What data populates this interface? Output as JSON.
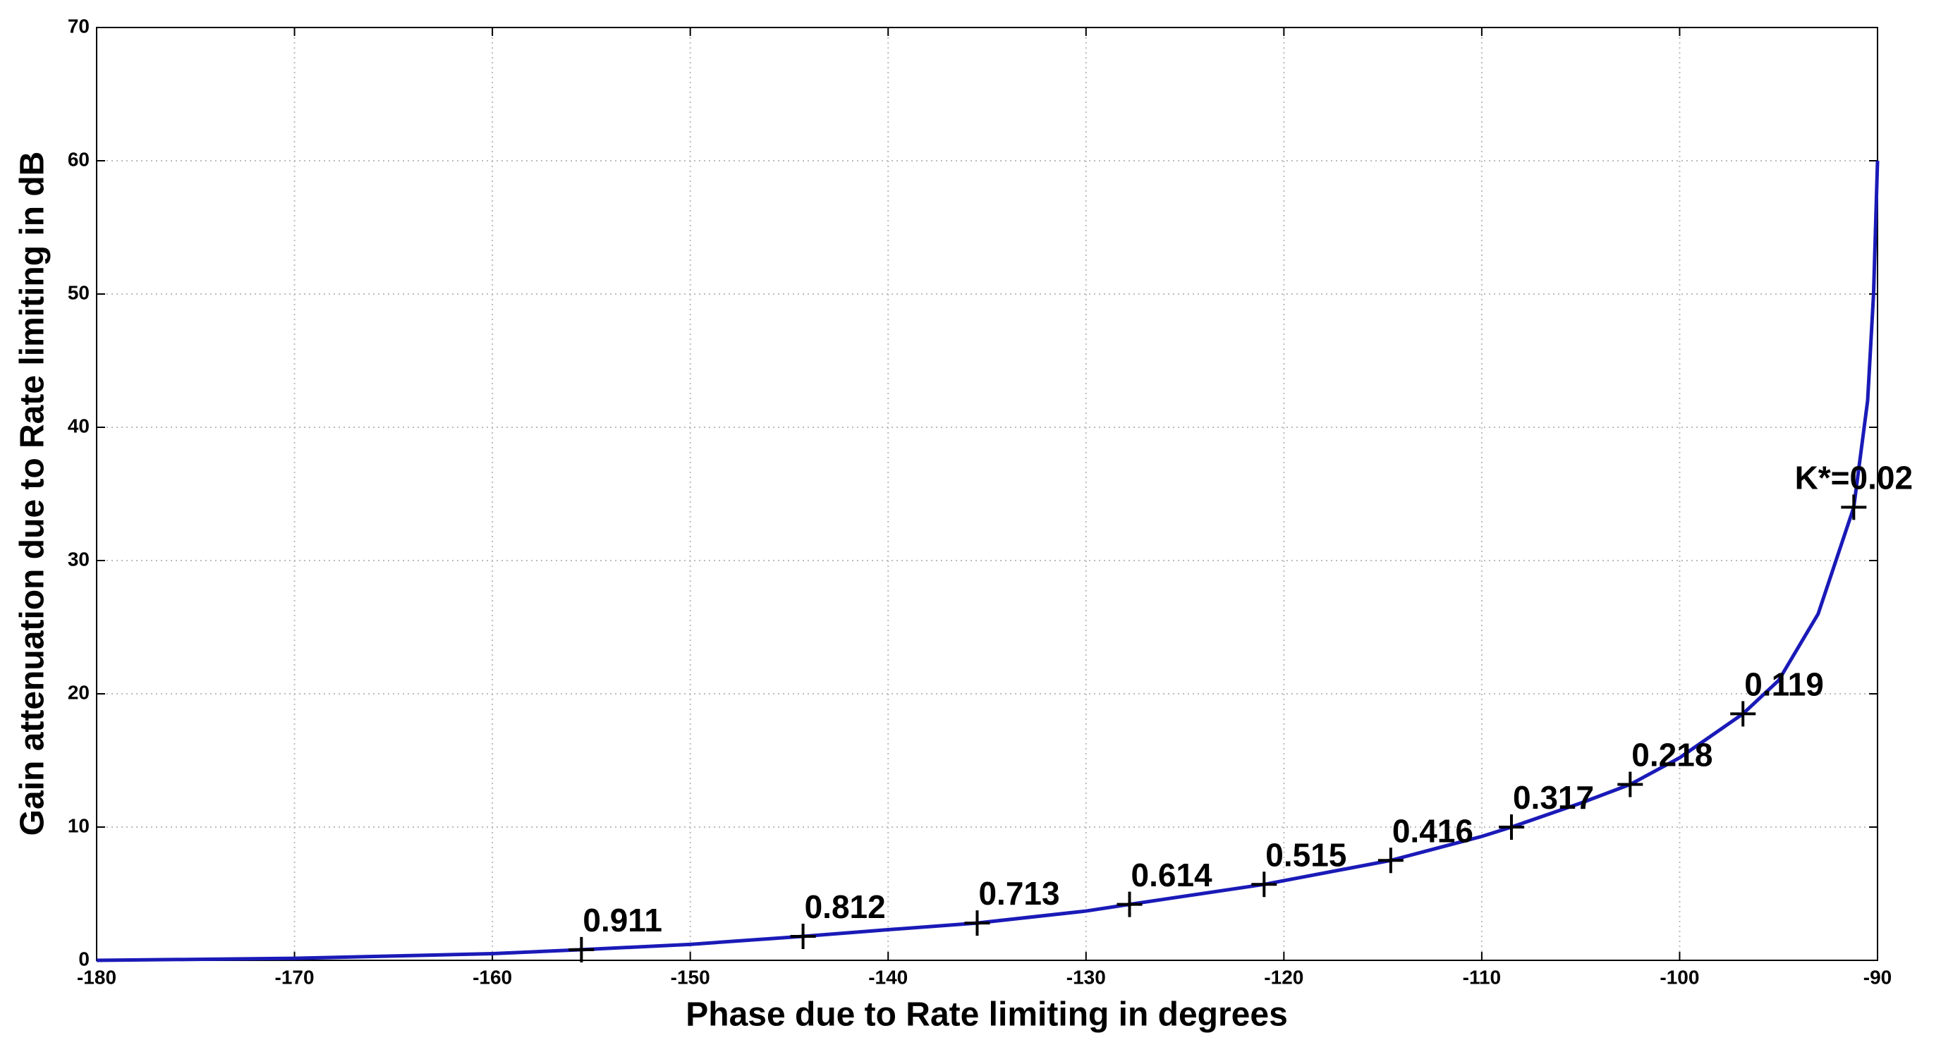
{
  "chart_data": {
    "type": "line",
    "x_label": "Phase due to Rate limiting in degrees",
    "y_label": "Gain attenuation due to Rate limiting in dB",
    "x": [
      -180,
      -170,
      -160,
      -155.5,
      -150,
      -144.3,
      -140,
      -135.5,
      -130,
      -127.8,
      -121,
      -114.6,
      -110,
      -108.5,
      -105,
      -102.5,
      -100,
      -96.8,
      -95,
      -93,
      -91.2,
      -90.5,
      -90.2,
      -90
    ],
    "y": [
      0,
      0.15,
      0.5,
      0.8,
      1.2,
      1.8,
      2.3,
      2.8,
      3.7,
      4.2,
      5.7,
      7.5,
      9.3,
      10,
      11.8,
      13.2,
      15.2,
      18.5,
      21,
      26,
      34,
      42,
      50,
      60
    ],
    "color": "#1a1ab8",
    "markers": [
      {
        "x": -155.5,
        "y": 0.8,
        "label": "0.911"
      },
      {
        "x": -144.3,
        "y": 1.8,
        "label": "0.812"
      },
      {
        "x": -135.5,
        "y": 2.8,
        "label": "0.713"
      },
      {
        "x": -127.8,
        "y": 4.2,
        "label": "0.614"
      },
      {
        "x": -121,
        "y": 5.7,
        "label": "0.515"
      },
      {
        "x": -114.6,
        "y": 7.5,
        "label": "0.416"
      },
      {
        "x": -108.5,
        "y": 10,
        "label": "0.317"
      },
      {
        "x": -102.5,
        "y": 13.2,
        "label": "0.218"
      },
      {
        "x": -96.8,
        "y": 18.5,
        "label": "0.119"
      },
      {
        "x": -91.2,
        "y": 34,
        "label": "K*=0.02"
      }
    ],
    "xlim": [
      -180,
      -90
    ],
    "ylim": [
      0,
      70
    ],
    "xticks": [
      -180,
      -170,
      -160,
      -150,
      -140,
      -130,
      -120,
      -110,
      -100,
      -90
    ],
    "yticks": [
      0,
      10,
      20,
      30,
      40,
      50,
      60,
      70
    ],
    "grid": true
  }
}
